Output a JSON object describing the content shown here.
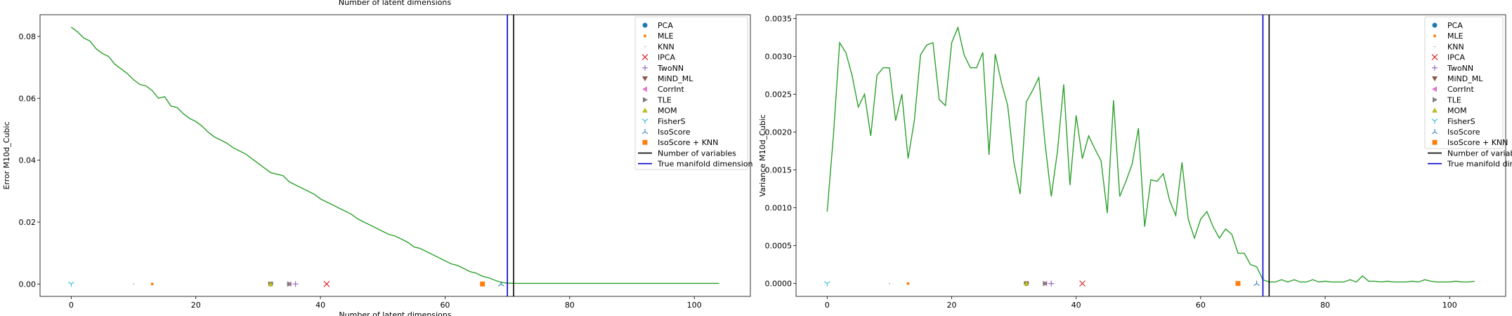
{
  "header": {
    "clipped_label": "Number of latent dimensions"
  },
  "chart_data": [
    {
      "type": "line",
      "xlabel": "Number of latent dimensions",
      "ylabel": "Error M10d_Cubic",
      "xlim": [
        -5,
        109
      ],
      "ylim": [
        -0.004,
        0.087
      ],
      "xticks": [
        0,
        20,
        40,
        60,
        80,
        100
      ],
      "yticks": [
        0.0,
        0.02,
        0.04,
        0.06,
        0.08
      ],
      "ytick_labels": [
        "0.00",
        "0.02",
        "0.04",
        "0.06",
        "0.08"
      ],
      "grid": false,
      "legend_position": "top-right",
      "series": [
        {
          "name": "",
          "color": "#2ca02c",
          "x": [
            0,
            1,
            2,
            3,
            4,
            5,
            6,
            7,
            8,
            9,
            10,
            11,
            12,
            13,
            14,
            15,
            16,
            17,
            18,
            19,
            20,
            21,
            22,
            23,
            24,
            25,
            26,
            27,
            28,
            29,
            30,
            31,
            32,
            33,
            34,
            35,
            36,
            37,
            38,
            39,
            40,
            41,
            42,
            43,
            44,
            45,
            46,
            47,
            48,
            49,
            50,
            51,
            52,
            53,
            54,
            55,
            56,
            57,
            58,
            59,
            60,
            61,
            62,
            63,
            64,
            65,
            66,
            67,
            68,
            69,
            70,
            71,
            72,
            73,
            74,
            75,
            76,
            77,
            78,
            79,
            80,
            81,
            82,
            83,
            84,
            85,
            86,
            87,
            88,
            89,
            90,
            91,
            92,
            93,
            94,
            95,
            96,
            97,
            98,
            99,
            100,
            101,
            102,
            103,
            104
          ],
          "values": [
            0.083,
            0.0815,
            0.0795,
            0.0785,
            0.076,
            0.0745,
            0.0735,
            0.071,
            0.0695,
            0.068,
            0.066,
            0.0645,
            0.064,
            0.0625,
            0.06,
            0.0605,
            0.0575,
            0.057,
            0.055,
            0.0535,
            0.0525,
            0.051,
            0.049,
            0.0475,
            0.0465,
            0.0455,
            0.044,
            0.043,
            0.042,
            0.0405,
            0.039,
            0.0375,
            0.036,
            0.0355,
            0.035,
            0.033,
            0.032,
            0.031,
            0.03,
            0.029,
            0.0275,
            0.0265,
            0.0255,
            0.0245,
            0.0235,
            0.0225,
            0.021,
            0.02,
            0.019,
            0.018,
            0.017,
            0.016,
            0.0155,
            0.0145,
            0.0135,
            0.012,
            0.0115,
            0.0105,
            0.0095,
            0.0085,
            0.0075,
            0.0065,
            0.006,
            0.005,
            0.004,
            0.0035,
            0.0025,
            0.002,
            0.0012,
            0.0005,
            0.0003,
            0.0002,
            0.0002,
            0.0002,
            0.0002,
            0.0002,
            0.0002,
            0.0002,
            0.0002,
            0.0002,
            0.0002,
            0.0002,
            0.0002,
            0.0002,
            0.0002,
            0.0002,
            0.0002,
            0.0002,
            0.0002,
            0.0002,
            0.0002,
            0.0002,
            0.0002,
            0.0002,
            0.0002,
            0.0002,
            0.0002,
            0.0002,
            0.0002,
            0.0002,
            0.0002,
            0.0002,
            0.0002,
            0.0002,
            0.0002
          ]
        }
      ],
      "markers": [
        {
          "name": "PCA",
          "x": 32,
          "y": 0.0,
          "symbol": "circle",
          "color": "#1f77b4"
        },
        {
          "name": "MLE",
          "x": 13,
          "y": 0.0,
          "symbol": "point",
          "color": "#ff7f0e"
        },
        {
          "name": "KNN",
          "x": 10,
          "y": 0.0,
          "symbol": "pixel",
          "color": "#2ca02c"
        },
        {
          "name": "IPCA",
          "x": 41,
          "y": 0.0,
          "symbol": "x",
          "color": "#d62728"
        },
        {
          "name": "TwoNN",
          "x": 36,
          "y": 0.0,
          "symbol": "plus",
          "color": "#9467bd"
        },
        {
          "name": "MiND_ML",
          "x": 32,
          "y": 0.0,
          "symbol": "triangle-down",
          "color": "#8c564b"
        },
        {
          "name": "CorrInt",
          "x": 35,
          "y": 0.0,
          "symbol": "triangle-left",
          "color": "#e377c2"
        },
        {
          "name": "TLE",
          "x": 35,
          "y": 0.0,
          "symbol": "triangle-right",
          "color": "#7f7f7f"
        },
        {
          "name": "MOM",
          "x": 32,
          "y": 0.0,
          "symbol": "triangle-up",
          "color": "#bcbd22"
        },
        {
          "name": "FisherS",
          "x": 0,
          "y": 0.0,
          "symbol": "tri-down",
          "color": "#17becf"
        },
        {
          "name": "IsoScore",
          "x": 69,
          "y": 0.0,
          "symbol": "tri-up",
          "color": "#1f77b4"
        },
        {
          "name": "IsoScore + KNN",
          "x": 66,
          "y": 0.0,
          "symbol": "square",
          "color": "#ff7f0e"
        }
      ],
      "vlines": [
        {
          "name": "Number of variables",
          "x": 71,
          "color": "#000000"
        },
        {
          "name": "True manifold dimension",
          "x": 70,
          "color": "#0000cc"
        }
      ]
    },
    {
      "type": "line",
      "xlabel": "",
      "ylabel": "Variance M10d_Cubic",
      "xlim": [
        -5,
        109
      ],
      "ylim": [
        -0.00017,
        0.00355
      ],
      "xticks": [
        0,
        20,
        40,
        60,
        80,
        100
      ],
      "yticks": [
        0.0,
        0.0005,
        0.001,
        0.0015,
        0.002,
        0.0025,
        0.003,
        0.0035
      ],
      "ytick_labels": [
        "0.0000",
        "0.0005",
        "0.0010",
        "0.0015",
        "0.0020",
        "0.0025",
        "0.0030",
        "0.0035"
      ],
      "grid": false,
      "legend_position": "top-right",
      "series": [
        {
          "name": "",
          "color": "#2ca02c",
          "x": [
            0,
            1,
            2,
            3,
            4,
            5,
            6,
            7,
            8,
            9,
            10,
            11,
            12,
            13,
            14,
            15,
            16,
            17,
            18,
            19,
            20,
            21,
            22,
            23,
            24,
            25,
            26,
            27,
            28,
            29,
            30,
            31,
            32,
            33,
            34,
            35,
            36,
            37,
            38,
            39,
            40,
            41,
            42,
            43,
            44,
            45,
            46,
            47,
            48,
            49,
            50,
            51,
            52,
            53,
            54,
            55,
            56,
            57,
            58,
            59,
            60,
            61,
            62,
            63,
            64,
            65,
            66,
            67,
            68,
            69,
            70,
            71,
            72,
            73,
            74,
            75,
            76,
            77,
            78,
            79,
            80,
            81,
            82,
            83,
            84,
            85,
            86,
            87,
            88,
            89,
            90,
            91,
            92,
            93,
            94,
            95,
            96,
            97,
            98,
            99,
            100,
            101,
            102,
            103,
            104
          ],
          "values": [
            0.00095,
            0.00195,
            0.00318,
            0.00305,
            0.00275,
            0.00233,
            0.0025,
            0.00195,
            0.00275,
            0.00285,
            0.00285,
            0.00215,
            0.0025,
            0.00165,
            0.00215,
            0.00302,
            0.00315,
            0.00318,
            0.00243,
            0.00235,
            0.00318,
            0.00338,
            0.00302,
            0.00285,
            0.00285,
            0.00305,
            0.0017,
            0.00303,
            0.00265,
            0.00235,
            0.0016,
            0.00118,
            0.0024,
            0.00255,
            0.00272,
            0.00185,
            0.00115,
            0.00175,
            0.00263,
            0.0013,
            0.00222,
            0.00165,
            0.00195,
            0.00178,
            0.00162,
            0.00093,
            0.00242,
            0.00115,
            0.00135,
            0.00158,
            0.00205,
            0.00075,
            0.00137,
            0.00135,
            0.00145,
            0.0011,
            0.0009,
            0.0016,
            0.00085,
            0.0006,
            0.00085,
            0.00095,
            0.00075,
            0.0006,
            0.00072,
            0.00065,
            0.0004,
            0.0004,
            0.00025,
            0.00022,
            5e-05,
            2e-05,
            2e-05,
            5e-05,
            2e-05,
            5e-05,
            2e-05,
            2e-05,
            5e-05,
            2e-05,
            3e-05,
            2e-05,
            2e-05,
            2e-05,
            5e-05,
            2e-05,
            0.0001,
            3e-05,
            3e-05,
            2e-05,
            3e-05,
            2e-05,
            2e-05,
            2e-05,
            3e-05,
            2e-05,
            5e-05,
            3e-05,
            2e-05,
            2e-05,
            2e-05,
            3e-05,
            2e-05,
            2e-05,
            3e-05
          ]
        }
      ],
      "markers": [
        {
          "name": "PCA",
          "x": 32,
          "y": 0.0,
          "symbol": "circle",
          "color": "#1f77b4"
        },
        {
          "name": "MLE",
          "x": 13,
          "y": 0.0,
          "symbol": "point",
          "color": "#ff7f0e"
        },
        {
          "name": "KNN",
          "x": 10,
          "y": 0.0,
          "symbol": "pixel",
          "color": "#2ca02c"
        },
        {
          "name": "IPCA",
          "x": 41,
          "y": 0.0,
          "symbol": "x",
          "color": "#d62728"
        },
        {
          "name": "TwoNN",
          "x": 36,
          "y": 0.0,
          "symbol": "plus",
          "color": "#9467bd"
        },
        {
          "name": "MiND_ML",
          "x": 32,
          "y": 0.0,
          "symbol": "triangle-down",
          "color": "#8c564b"
        },
        {
          "name": "CorrInt",
          "x": 35,
          "y": 0.0,
          "symbol": "triangle-left",
          "color": "#e377c2"
        },
        {
          "name": "TLE",
          "x": 35,
          "y": 0.0,
          "symbol": "triangle-right",
          "color": "#7f7f7f"
        },
        {
          "name": "MOM",
          "x": 32,
          "y": 0.0,
          "symbol": "triangle-up",
          "color": "#bcbd22"
        },
        {
          "name": "FisherS",
          "x": 0,
          "y": 0.0,
          "symbol": "tri-down",
          "color": "#17becf"
        },
        {
          "name": "IsoScore",
          "x": 69,
          "y": 0.0,
          "symbol": "tri-up",
          "color": "#1f77b4"
        },
        {
          "name": "IsoScore + KNN",
          "x": 66,
          "y": 0.0,
          "symbol": "square",
          "color": "#ff7f0e"
        }
      ],
      "vlines": [
        {
          "name": "Number of variables",
          "x": 71,
          "color": "#000000"
        },
        {
          "name": "True manifold dimension",
          "x": 70,
          "color": "#0000cc"
        }
      ]
    }
  ]
}
